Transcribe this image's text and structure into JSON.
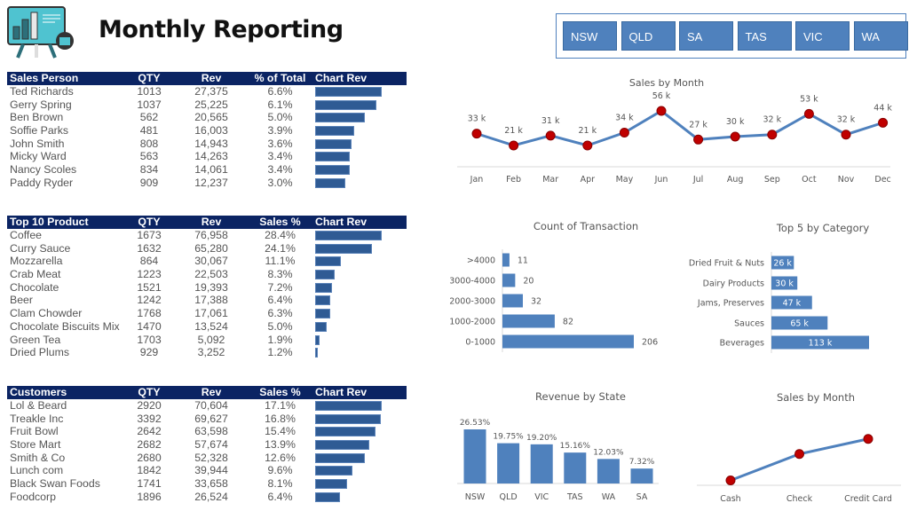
{
  "header": {
    "title": "Monthly Reporting",
    "logo_icon": "presentation-board-icon"
  },
  "slicer": {
    "items": [
      "NSW",
      "QLD",
      "SA",
      "TAS",
      "VIC",
      "WA"
    ],
    "color": "#4f81bd"
  },
  "tables": [
    {
      "columns": [
        "Sales Person",
        "QTY",
        "Rev",
        "% of Total",
        "Chart Rev"
      ],
      "rows": [
        [
          "Ted Richards",
          "1013",
          "27,375",
          "6.6%"
        ],
        [
          "Gerry Spring",
          "1037",
          "25,225",
          "6.1%"
        ],
        [
          "Ben Brown",
          "562",
          "20,565",
          "5.0%"
        ],
        [
          "Soffie Parks",
          "481",
          "16,003",
          "3.9%"
        ],
        [
          "John Smith",
          "808",
          "14,943",
          "3.6%"
        ],
        [
          "Micky Ward",
          "563",
          "14,263",
          "3.4%"
        ],
        [
          "Nancy Scoles",
          "834",
          "14,061",
          "3.4%"
        ],
        [
          "Paddy Ryder",
          "909",
          "12,237",
          "3.0%"
        ]
      ]
    },
    {
      "columns": [
        "Top 10 Product",
        "QTY",
        "Rev",
        "Sales %",
        "Chart Rev"
      ],
      "rows": [
        [
          "Coffee",
          "1673",
          "76,958",
          "28.4%"
        ],
        [
          "Curry Sauce",
          "1632",
          "65,280",
          "24.1%"
        ],
        [
          "Mozzarella",
          "864",
          "30,067",
          "11.1%"
        ],
        [
          "Crab Meat",
          "1223",
          "22,503",
          "8.3%"
        ],
        [
          "Chocolate",
          "1521",
          "19,393",
          "7.2%"
        ],
        [
          "Beer",
          "1242",
          "17,388",
          "6.4%"
        ],
        [
          "Clam Chowder",
          "1768",
          "17,061",
          "6.3%"
        ],
        [
          "Chocolate Biscuits Mix",
          "1470",
          "13,524",
          "5.0%"
        ],
        [
          "Green Tea",
          "1703",
          "5,092",
          "1.9%"
        ],
        [
          "Dried Plums",
          "929",
          "3,252",
          "1.2%"
        ]
      ]
    },
    {
      "columns": [
        "Customers",
        "QTY",
        "Rev",
        "Sales %",
        "Chart Rev"
      ],
      "rows": [
        [
          "Lol & Beard",
          "2920",
          "70,604",
          "17.1%"
        ],
        [
          "Treakle Inc",
          "3392",
          "69,627",
          "16.8%"
        ],
        [
          "Fruit Bowl",
          "2642",
          "63,598",
          "15.4%"
        ],
        [
          "Store Mart",
          "2682",
          "57,674",
          "13.9%"
        ],
        [
          "Smith & Co",
          "2680",
          "52,328",
          "12.6%"
        ],
        [
          "Lunch com",
          "1842",
          "39,944",
          "9.6%"
        ],
        [
          "Black Swan Foods",
          "1741",
          "33,658",
          "8.1%"
        ],
        [
          "Foodcorp",
          "1896",
          "26,524",
          "6.4%"
        ]
      ]
    }
  ],
  "chart_data": [
    {
      "type": "line",
      "title": "Sales by Month",
      "categories": [
        "Jan",
        "Feb",
        "Mar",
        "Apr",
        "May",
        "Jun",
        "Jul",
        "Aug",
        "Sep",
        "Oct",
        "Nov",
        "Dec"
      ],
      "values": [
        33,
        21,
        31,
        21,
        34,
        56,
        27,
        30,
        32,
        53,
        32,
        44
      ],
      "labels": [
        "33 k",
        "21 k",
        "31 k",
        "21 k",
        "34 k",
        "56 k",
        "27 k",
        "30 k",
        "32 k",
        "53 k",
        "32 k",
        "44 k"
      ],
      "line_color": "#4f81bd",
      "marker_color": "#c00000"
    },
    {
      "type": "bar",
      "orientation": "horizontal",
      "title": "Count of Transaction",
      "categories": [
        ">4000",
        "3000-4000",
        "2000-3000",
        "1000-2000",
        "0-1000"
      ],
      "values": [
        11,
        20,
        32,
        82,
        206
      ],
      "labels": [
        "11",
        "20",
        "32",
        "82",
        "206"
      ],
      "color": "#4f81bd"
    },
    {
      "type": "bar",
      "orientation": "horizontal",
      "title": "Top 5 by Category",
      "categories": [
        "Dried Fruit & Nuts",
        "Dairy Products",
        "Jams, Preserves",
        "Sauces",
        "Beverages"
      ],
      "values": [
        26,
        30,
        47,
        65,
        113
      ],
      "labels": [
        "26 k",
        "30 k",
        "47 k",
        "65 k",
        "113 k"
      ],
      "color": "#4f81bd"
    },
    {
      "type": "bar",
      "title": "Revenue by State",
      "categories": [
        "NSW",
        "QLD",
        "VIC",
        "TAS",
        "WA",
        "SA"
      ],
      "values": [
        26.53,
        19.75,
        19.2,
        15.16,
        12.03,
        7.32
      ],
      "labels": [
        "26.53%",
        "19.75%",
        "19.20%",
        "15.16%",
        "12.03%",
        "7.32%"
      ],
      "color": "#4f81bd"
    },
    {
      "type": "line",
      "title": "Sales by Month",
      "categories": [
        "Cash",
        "Check",
        "Credit Card"
      ],
      "values": [
        10,
        45,
        65
      ],
      "line_color": "#4f81bd",
      "marker_color": "#c00000"
    }
  ]
}
